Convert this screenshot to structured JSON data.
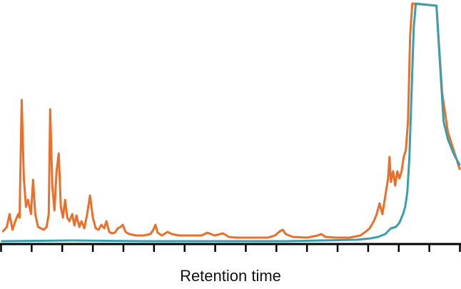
{
  "chart_data": {
    "type": "line",
    "x_label": "Retention time",
    "xlim": [
      0,
      645
    ],
    "ylim": [
      0,
      340
    ],
    "xticks": [
      0,
      43,
      86,
      129,
      172,
      215,
      258,
      301,
      344,
      387,
      430,
      473,
      516,
      559,
      602,
      645
    ],
    "series": [
      {
        "color": "#e8702a",
        "x": [
          2,
          8,
          12,
          16,
          20,
          24,
          26,
          29,
          32,
          35,
          38,
          42,
          45,
          48,
          52,
          56,
          60,
          64,
          67,
          69,
          72,
          75,
          78,
          81,
          84,
          87,
          90,
          93,
          96,
          100,
          103,
          106,
          110,
          113,
          117,
          121,
          125,
          129,
          133,
          137,
          141,
          145,
          148,
          152,
          156,
          160,
          164,
          168,
          171,
          175,
          180,
          190,
          200,
          210,
          214,
          217,
          220,
          226,
          234,
          240,
          250,
          260,
          270,
          282,
          290,
          300,
          312,
          320,
          330,
          345,
          360,
          375,
          385,
          392,
          396,
          400,
          410,
          430,
          445,
          450,
          456,
          470,
          490,
          505,
          512,
          518,
          524,
          528,
          532,
          536,
          540,
          544,
          546,
          548,
          551,
          554,
          557,
          560,
          563,
          566,
          569,
          572,
          575,
          578,
          612,
          620,
          628,
          636,
          645
        ],
        "values": [
          15,
          22,
          40,
          18,
          30,
          40,
          35,
          200,
          90,
          50,
          60,
          40,
          88,
          40,
          22,
          20,
          18,
          22,
          40,
          187,
          80,
          45,
          100,
          125,
          50,
          35,
          60,
          35,
          30,
          40,
          24,
          38,
          22,
          30,
          20,
          40,
          66,
          35,
          20,
          18,
          25,
          20,
          30,
          15,
          13,
          14,
          20,
          22,
          25,
          15,
          12,
          10,
          10,
          12,
          18,
          25,
          14,
          10,
          15,
          12,
          10,
          10,
          10,
          10,
          14,
          10,
          13,
          8,
          7,
          7,
          7,
          7,
          10,
          16,
          18,
          12,
          8,
          7,
          10,
          12,
          8,
          7,
          7,
          10,
          15,
          20,
          30,
          40,
          55,
          40,
          65,
          90,
          120,
          85,
          100,
          80,
          100,
          90,
          100,
          120,
          130,
          170,
          290,
          335,
          332,
          210,
          155,
          130,
          102
        ]
      },
      {
        "color": "#3a9ead",
        "x": [
          0,
          100,
          200,
          300,
          400,
          450,
          500,
          520,
          530,
          540,
          548,
          555,
          560,
          565,
          568,
          571,
          574,
          577,
          580,
          583,
          612,
          617,
          622,
          628,
          636,
          645
        ],
        "values": [
          2,
          3,
          2,
          2,
          2,
          3,
          4,
          6,
          8,
          12,
          20,
          22,
          28,
          40,
          50,
          70,
          120,
          210,
          300,
          335,
          332,
          250,
          170,
          145,
          125,
          108
        ]
      }
    ]
  }
}
